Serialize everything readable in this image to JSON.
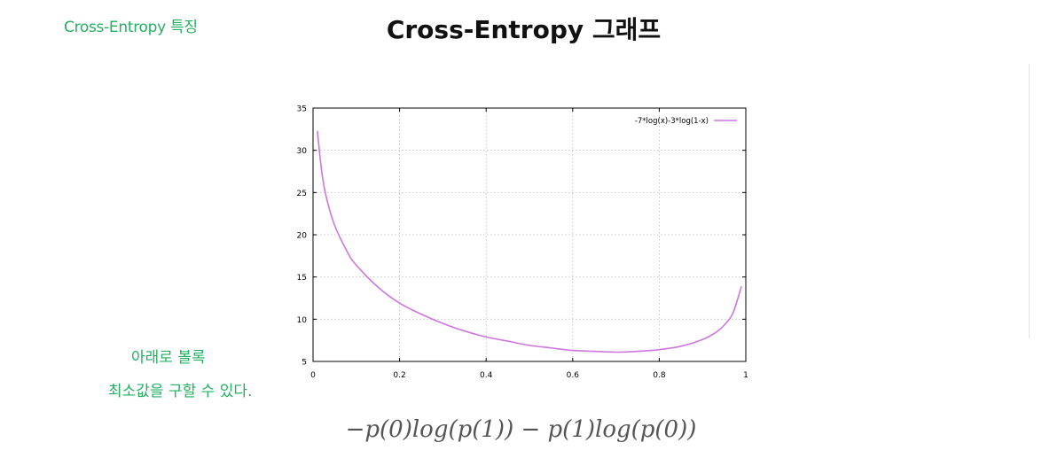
{
  "header": {
    "section_label": "Cross-Entropy 특징",
    "title": "Cross-Entropy 그래프"
  },
  "notes": {
    "line1": "아래로 볼록",
    "line2": "최소값을 구할 수 있다."
  },
  "formula": "−p(0)log(p(1)) − p(1)log(p(0))",
  "colors": {
    "accent_green": "#22b060",
    "curve": "#cc77dd"
  },
  "chart_data": {
    "type": "line",
    "title": "",
    "xlabel": "",
    "ylabel": "",
    "xlim": [
      0,
      1
    ],
    "ylim": [
      5,
      35
    ],
    "x_ticks": [
      0,
      0.2,
      0.4,
      0.6,
      0.8,
      1
    ],
    "x_tick_labels": [
      "0",
      "0.2",
      "0.4",
      "0.6",
      "0.8",
      "1"
    ],
    "y_ticks": [
      5,
      10,
      15,
      20,
      25,
      30,
      35
    ],
    "y_tick_labels": [
      "5",
      "10",
      "15",
      "20",
      "25",
      "30",
      "35"
    ],
    "grid": true,
    "legend_position": "top-right",
    "series": [
      {
        "name": "-7*log(x)-3*log(1-x)",
        "color": "#cc77dd",
        "x": [
          0.01,
          0.02,
          0.03,
          0.05,
          0.08,
          0.1,
          0.15,
          0.2,
          0.25,
          0.3,
          0.35,
          0.4,
          0.45,
          0.5,
          0.55,
          0.6,
          0.65,
          0.7,
          0.75,
          0.8,
          0.85,
          0.9,
          0.93,
          0.95,
          0.97,
          0.99
        ],
        "y": [
          32.3,
          27.5,
          24.6,
          21.1,
          17.9,
          16.4,
          13.8,
          11.9,
          10.6,
          9.5,
          8.6,
          7.9,
          7.4,
          6.9,
          6.6,
          6.3,
          6.2,
          6.1,
          6.2,
          6.4,
          6.8,
          7.6,
          8.4,
          9.3,
          10.7,
          13.9
        ]
      }
    ]
  }
}
